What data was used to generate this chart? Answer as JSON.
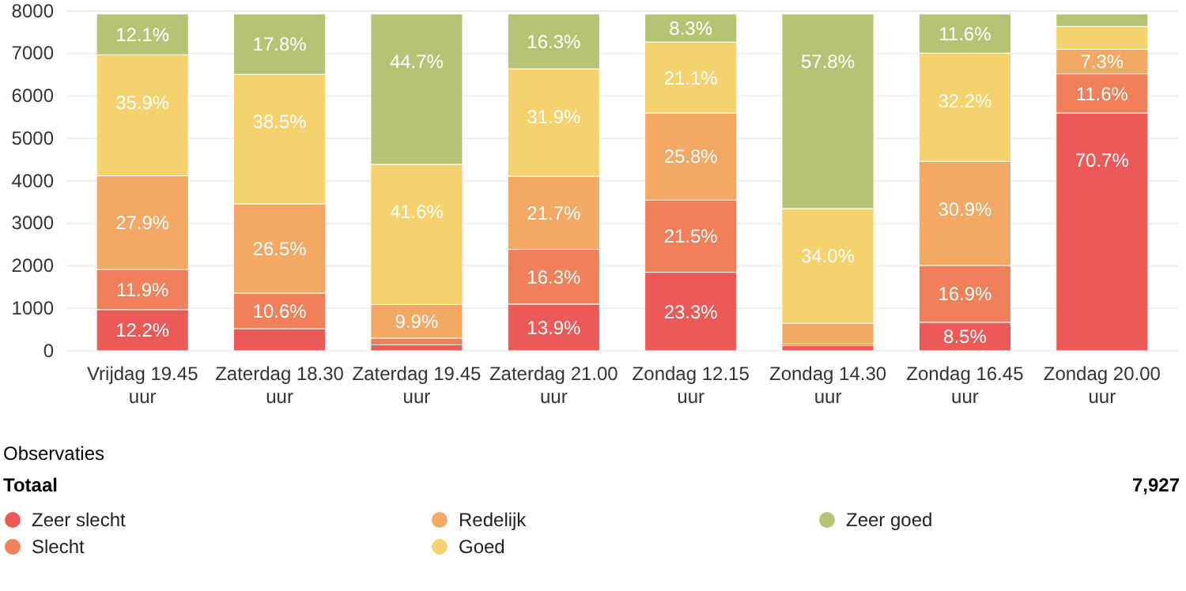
{
  "chart_data": {
    "type": "bar",
    "stacked": true,
    "categories": [
      "Vrijdag 19.45 uur",
      "Zaterdag 18.30 uur",
      "Zaterdag 19.45 uur",
      "Zaterdag 21.00 uur",
      "Zondag 12.15 uur",
      "Zondag 14.30 uur",
      "Zondag 16.45 uur",
      "Zondag 20.00 uur"
    ],
    "ylim": [
      0,
      8000
    ],
    "yticks": [
      0,
      1000,
      2000,
      3000,
      4000,
      5000,
      6000,
      7000,
      8000
    ],
    "grid": "y",
    "legend": "bottom",
    "series": [
      {
        "name": "Zeer slecht",
        "color": "#ec5a58",
        "values": [
          970,
          520,
          140,
          1100,
          1850,
          120,
          670,
          5600
        ]
      },
      {
        "name": "Slecht",
        "color": "#f08059",
        "values": [
          940,
          840,
          160,
          1290,
          1700,
          40,
          1340,
          920
        ]
      },
      {
        "name": "Redelijk",
        "color": "#f3a864",
        "values": [
          2210,
          2100,
          790,
          1720,
          2050,
          490,
          2450,
          580
        ]
      },
      {
        "name": "Goed",
        "color": "#f5d26d",
        "values": [
          2850,
          3050,
          3300,
          2530,
          1670,
          2700,
          2550,
          540
        ]
      },
      {
        "name": "Zeer goed",
        "color": "#b5c474",
        "values": [
          960,
          1420,
          3540,
          1290,
          660,
          4580,
          920,
          290
        ]
      }
    ],
    "annotations": [
      "Observaties",
      "Totaal",
      "7,927",
      {
        "text": "12.2%",
        "x": "Vrijdag 19.45 uur",
        "y": 970
      },
      {
        "text": "11.9%",
        "x": "Vrijdag 19.45 uur",
        "y": 1910
      },
      {
        "text": "27.9%",
        "x": "Vrijdag 19.45 uur",
        "y": 4120
      },
      {
        "text": "35.9%",
        "x": "Vrijdag 19.45 uur",
        "y": 6970
      },
      {
        "text": "12.1%",
        "x": "Vrijdag 19.45 uur",
        "y": 7930
      },
      {
        "text": "10.6%",
        "x": "Zaterdag 18.30 uur",
        "y": 1360
      },
      {
        "text": "26.5%",
        "x": "Zaterdag 18.30 uur",
        "y": 3460
      },
      {
        "text": "38.5%",
        "x": "Zaterdag 18.30 uur",
        "y": 6510
      },
      {
        "text": "17.8%",
        "x": "Zaterdag 18.30 uur",
        "y": 7930
      },
      {
        "text": "9.9%",
        "x": "Zaterdag 19.45 uur",
        "y": 1090
      },
      {
        "text": "41.6%",
        "x": "Zaterdag 19.45 uur",
        "y": 4390
      },
      {
        "text": "44.7%",
        "x": "Zaterdag 19.45 uur",
        "y": 7930
      },
      {
        "text": "13.9%",
        "x": "Zaterdag 21.00 uur",
        "y": 1100
      },
      {
        "text": "16.3%",
        "x": "Zaterdag 21.00 uur",
        "y": 2390
      },
      {
        "text": "21.7%",
        "x": "Zaterdag 21.00 uur",
        "y": 4110
      },
      {
        "text": "31.9%",
        "x": "Zaterdag 21.00 uur",
        "y": 6640
      },
      {
        "text": "16.3%",
        "x": "Zaterdag 21.00 uur",
        "y": 7930
      },
      {
        "text": "23.3%",
        "x": "Zondag 12.15 uur",
        "y": 1850
      },
      {
        "text": "21.5%",
        "x": "Zondag 12.15 uur",
        "y": 3550
      },
      {
        "text": "25.8%",
        "x": "Zondag 12.15 uur",
        "y": 5600
      },
      {
        "text": "21.1%",
        "x": "Zondag 12.15 uur",
        "y": 7270
      },
      {
        "text": "8.3%",
        "x": "Zondag 12.15 uur",
        "y": 7930
      },
      {
        "text": "34.0%",
        "x": "Zondag 14.30 uur",
        "y": 3350
      },
      {
        "text": "57.8%",
        "x": "Zondag 14.30 uur",
        "y": 7930
      },
      {
        "text": "8.5%",
        "x": "Zondag 16.45 uur",
        "y": 670
      },
      {
        "text": "16.9%",
        "x": "Zondag 16.45 uur",
        "y": 2010
      },
      {
        "text": "30.9%",
        "x": "Zondag 16.45 uur",
        "y": 4460
      },
      {
        "text": "32.2%",
        "x": "Zondag 16.45 uur",
        "y": 7010
      },
      {
        "text": "11.6%",
        "x": "Zondag 16.45 uur",
        "y": 7930
      },
      {
        "text": "70.7%",
        "x": "Zondag 20.00 uur",
        "y": 5600
      },
      {
        "text": "11.6%",
        "x": "Zondag 20.00 uur",
        "y": 6520
      },
      {
        "text": "7.3%",
        "x": "Zondag 20.00 uur",
        "y": 7100
      }
    ]
  }
}
